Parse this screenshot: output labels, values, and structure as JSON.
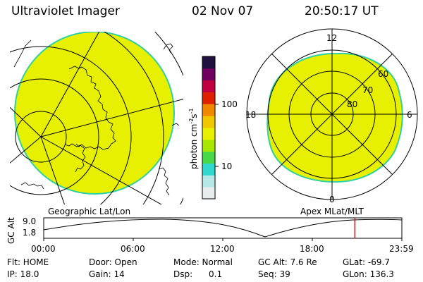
{
  "header": {
    "instrument": "Ultraviolet Imager",
    "date": "02 Nov 07",
    "time": "20:50:17 UT"
  },
  "left_panel": {
    "caption": "Geographic Lat/Lon"
  },
  "right_panel": {
    "caption": "Apex MLat/MLT",
    "mlt_labels": {
      "top": "12",
      "left": "18",
      "right": "6",
      "bottom": "0"
    },
    "lat_labels": [
      "60",
      "70",
      "80"
    ]
  },
  "colorbar": {
    "ticks": [
      "100",
      "10"
    ],
    "unit_base": "photon cm",
    "unit_exp1": "-2",
    "unit_mid": "s",
    "unit_exp2": "-1",
    "colors": [
      "#e8eef0",
      "#b6e8e8",
      "#30d8d0",
      "#48d848",
      "#a8e800",
      "#e8f000",
      "#f0c800",
      "#f08800",
      "#e02000",
      "#c00040",
      "#700060",
      "#201040"
    ]
  },
  "timeline": {
    "ylabel": "GC Alt",
    "ytick_top": "9.0",
    "ytick_bottom": "1.8",
    "xticks": [
      "00:00",
      "06:00",
      "12:00",
      "18:00",
      "23:59"
    ],
    "current_time_hours": 20.84,
    "marker_color": "#e00000"
  },
  "status": {
    "col1": [
      "Flt: HOME",
      "IP: 18.0"
    ],
    "col2": [
      "Door: Open",
      "Gain: 14"
    ],
    "col3": [
      "Mode: Normal",
      "Dsp:      0.1"
    ],
    "col4": [
      "GC Alt: 7.6 Re",
      "Seq: 39"
    ],
    "col5": [
      "GLat: -69.7",
      "GLon: 136.3"
    ]
  },
  "colors": {
    "aurora_fill": "#e6f000",
    "aurora_edge": "#30d0a0",
    "lines": "#000000"
  }
}
